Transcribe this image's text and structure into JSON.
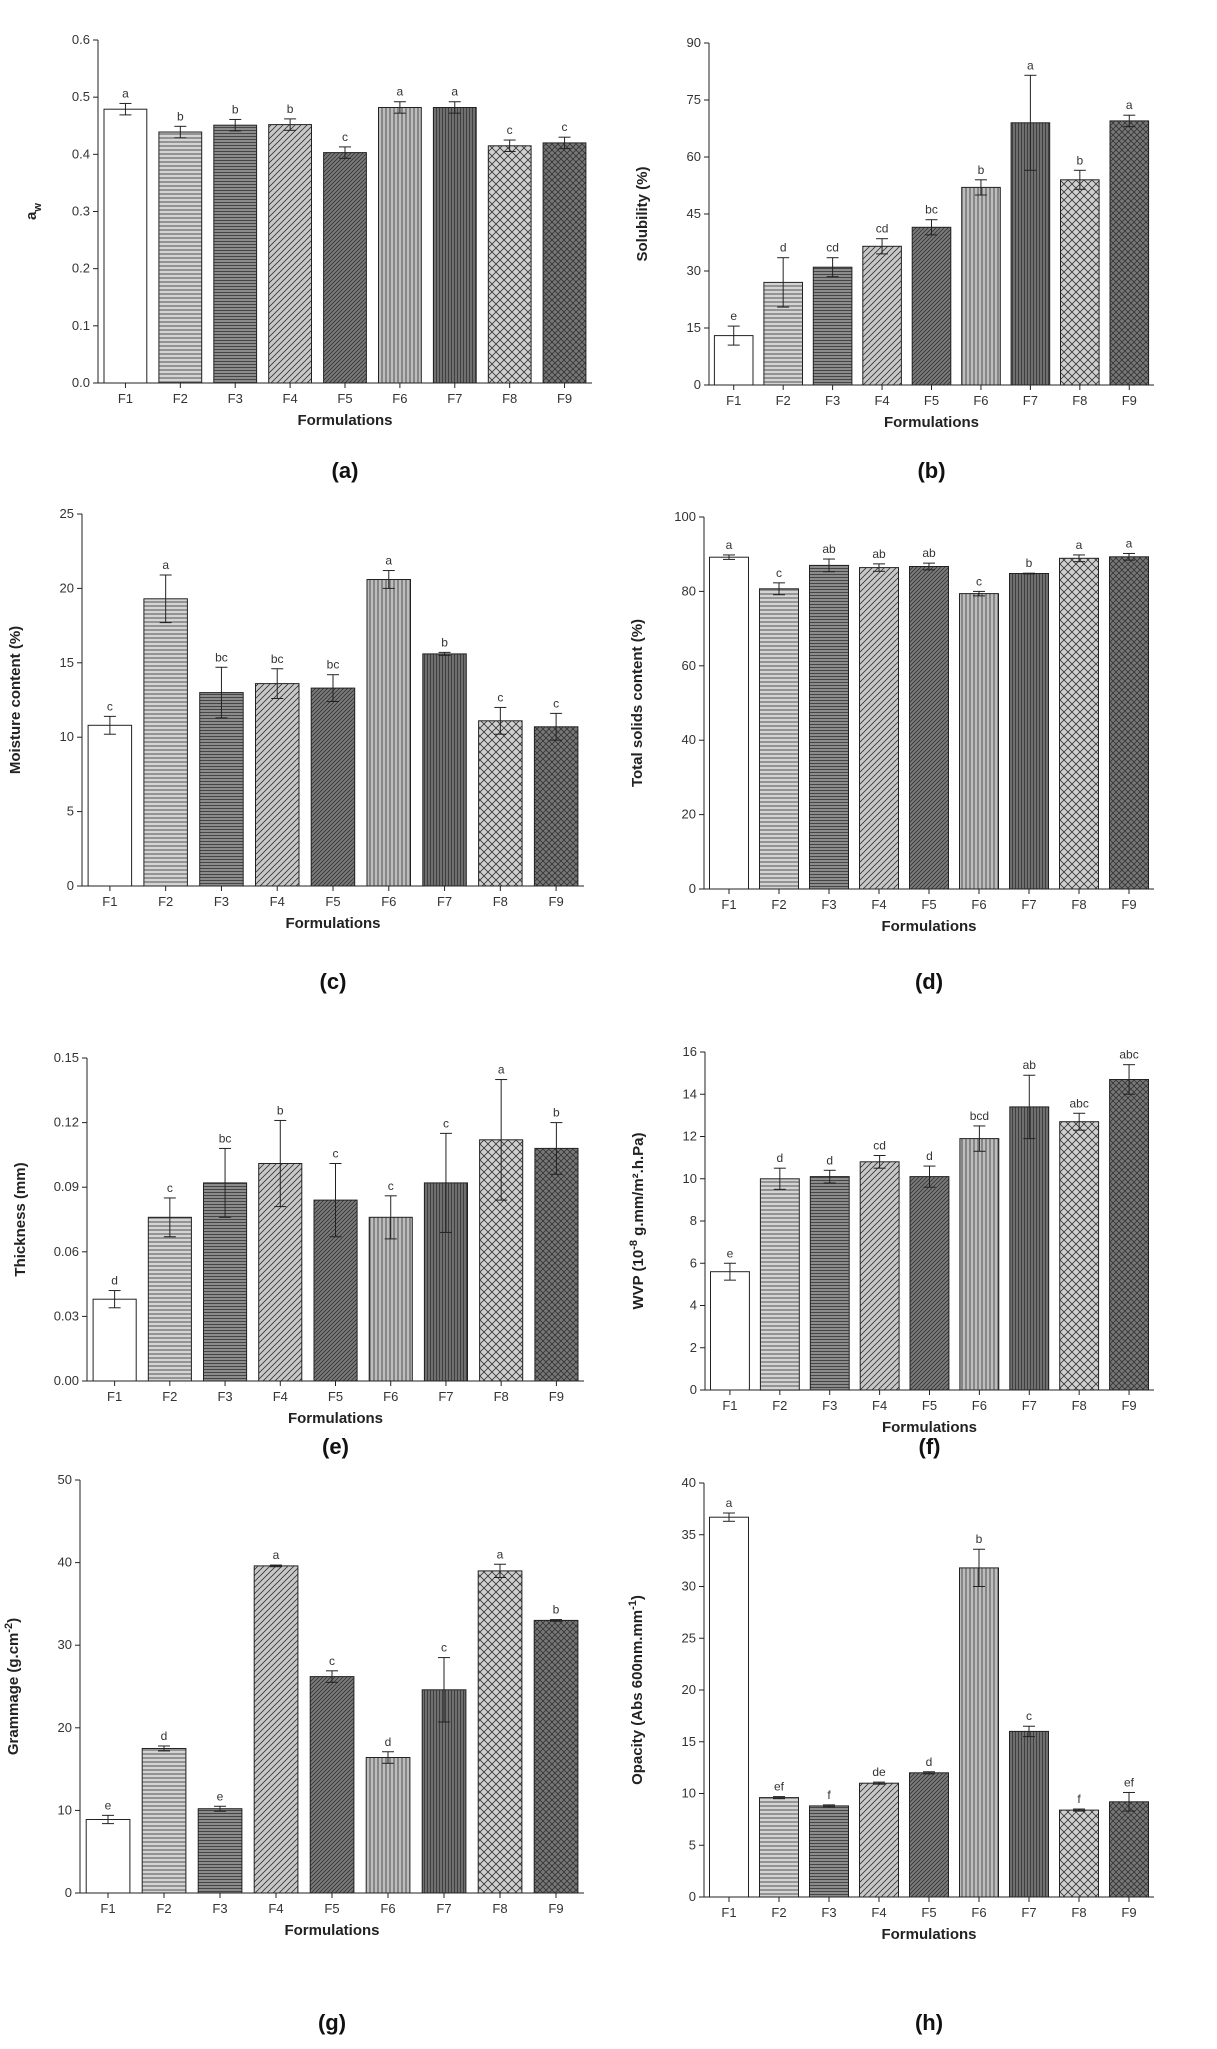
{
  "chart_data": [
    {
      "id": "a",
      "type": "bar",
      "panel_label": "(a)",
      "ylabel_main": "a",
      "ylabel_sub": "w",
      "ylabel_sup": "",
      "ylabel_after": "",
      "xlabel": "Formulations",
      "categories": [
        "F1",
        "F2",
        "F3",
        "F4",
        "F5",
        "F6",
        "F7",
        "F8",
        "F9"
      ],
      "values": [
        0.479,
        0.439,
        0.451,
        0.452,
        0.403,
        0.482,
        0.482,
        0.415,
        0.42
      ],
      "errors": [
        0.01,
        0.01,
        0.01,
        0.01,
        0.01,
        0.01,
        0.01,
        0.01,
        0.01
      ],
      "letters": [
        "a",
        "b",
        "b",
        "b",
        "c",
        "a",
        "a",
        "c",
        "c"
      ],
      "ylim": [
        0,
        0.6
      ],
      "yticks": [
        0.0,
        0.1,
        0.2,
        0.3,
        0.4,
        0.5,
        0.6
      ],
      "ytick_labels": [
        "0.0",
        "0.1",
        "0.2",
        "0.3",
        "0.4",
        "0.5",
        "0.6"
      ]
    },
    {
      "id": "b",
      "type": "bar",
      "panel_label": "(b)",
      "ylabel_main": "Solubility (%)",
      "ylabel_sub": "",
      "ylabel_sup": "",
      "ylabel_after": "",
      "xlabel": "Formulations",
      "categories": [
        "F1",
        "F2",
        "F3",
        "F4",
        "F5",
        "F6",
        "F7",
        "F8",
        "F9"
      ],
      "values": [
        13,
        27,
        31,
        36.5,
        41.5,
        52,
        69,
        54,
        69.5
      ],
      "errors": [
        2.5,
        6.5,
        2.5,
        2,
        2,
        2,
        12.5,
        2.5,
        1.5
      ],
      "letters": [
        "e",
        "d",
        "cd",
        "cd",
        "bc",
        "b",
        "a",
        "b",
        "a"
      ],
      "ylim": [
        0,
        90
      ],
      "yticks": [
        0,
        15,
        30,
        45,
        60,
        75,
        90
      ],
      "ytick_labels": [
        "0",
        "15",
        "30",
        "45",
        "60",
        "75",
        "90"
      ]
    },
    {
      "id": "c",
      "type": "bar",
      "panel_label": "(c)",
      "ylabel_main": "Moisture content (%)",
      "ylabel_sub": "",
      "ylabel_sup": "",
      "ylabel_after": "",
      "xlabel": "Formulations",
      "categories": [
        "F1",
        "F2",
        "F3",
        "F4",
        "F5",
        "F6",
        "F7",
        "F8",
        "F9"
      ],
      "values": [
        10.8,
        19.3,
        13,
        13.6,
        13.3,
        20.6,
        15.6,
        11.1,
        10.7
      ],
      "errors": [
        0.6,
        1.6,
        1.7,
        1,
        0.9,
        0.6,
        0.1,
        0.9,
        0.9
      ],
      "letters": [
        "c",
        "a",
        "bc",
        "bc",
        "bc",
        "a",
        "b",
        "c",
        "c"
      ],
      "ylim": [
        0,
        25
      ],
      "yticks": [
        0,
        5,
        10,
        15,
        20,
        25
      ],
      "ytick_labels": [
        "0",
        "5",
        "10",
        "15",
        "20",
        "25"
      ]
    },
    {
      "id": "d",
      "type": "bar",
      "panel_label": "(d)",
      "ylabel_main": "Total solids content (%)",
      "ylabel_sub": "",
      "ylabel_sup": "",
      "ylabel_after": "",
      "xlabel": "Formulations",
      "categories": [
        "F1",
        "F2",
        "F3",
        "F4",
        "F5",
        "F6",
        "F7",
        "F8",
        "F9"
      ],
      "values": [
        89.2,
        80.7,
        87,
        86.4,
        86.7,
        79.4,
        84.8,
        88.9,
        89.3
      ],
      "errors": [
        0.6,
        1.6,
        1.7,
        1,
        0.9,
        0.6,
        0.1,
        0.9,
        0.9
      ],
      "letters": [
        "a",
        "c",
        "ab",
        "ab",
        "ab",
        "c",
        "b",
        "a",
        "a"
      ],
      "ylim": [
        0,
        100
      ],
      "yticks": [
        0,
        20,
        40,
        60,
        80,
        100
      ],
      "ytick_labels": [
        "0",
        "20",
        "40",
        "60",
        "80",
        "100"
      ]
    },
    {
      "id": "e",
      "type": "bar",
      "panel_label": "(e)",
      "ylabel_main": "Thickness (mm)",
      "ylabel_sub": "",
      "ylabel_sup": "",
      "ylabel_after": "",
      "xlabel": "Formulations",
      "categories": [
        "F1",
        "F2",
        "F3",
        "F4",
        "F5",
        "F6",
        "F7",
        "F8",
        "F9"
      ],
      "values": [
        0.038,
        0.076,
        0.092,
        0.101,
        0.084,
        0.076,
        0.092,
        0.112,
        0.108
      ],
      "errors": [
        0.004,
        0.009,
        0.016,
        0.02,
        0.017,
        0.01,
        0.023,
        0.028,
        0.012
      ],
      "letters": [
        "d",
        "c",
        "bc",
        "b",
        "c",
        "c",
        "c",
        "a",
        "b"
      ],
      "ylim": [
        0,
        0.15
      ],
      "yticks": [
        0.0,
        0.03,
        0.06,
        0.09,
        0.12,
        0.15
      ],
      "ytick_labels": [
        "0.00",
        "0.03",
        "0.06",
        "0.09",
        "0.12",
        "0.15"
      ]
    },
    {
      "id": "f",
      "type": "bar",
      "panel_label": "(f)",
      "ylabel_main": "WVP (10",
      "ylabel_sub": "",
      "ylabel_sup": "-8",
      "ylabel_after": " g.mm/m².h.Pa)",
      "xlabel": "Formulations",
      "categories": [
        "F1",
        "F2",
        "F3",
        "F4",
        "F5",
        "F6",
        "F7",
        "F8",
        "F9"
      ],
      "values": [
        5.6,
        10,
        10.1,
        10.8,
        10.1,
        11.9,
        13.4,
        12.7,
        14.7
      ],
      "errors": [
        0.4,
        0.5,
        0.3,
        0.3,
        0.5,
        0.6,
        1.5,
        0.4,
        0.7
      ],
      "letters": [
        "e",
        "d",
        "d",
        "cd",
        "d",
        "bcd",
        "ab",
        "abc",
        "abc"
      ],
      "ylim": [
        0,
        16
      ],
      "yticks": [
        0,
        2,
        4,
        6,
        8,
        10,
        12,
        14,
        16
      ],
      "ytick_labels": [
        "0",
        "2",
        "4",
        "6",
        "8",
        "10",
        "12",
        "14",
        "16"
      ]
    },
    {
      "id": "g",
      "type": "bar",
      "panel_label": "(g)",
      "ylabel_main": "Grammage (g.cm",
      "ylabel_sub": "",
      "ylabel_sup": "-2",
      "ylabel_after": ")",
      "xlabel": "Formulations",
      "categories": [
        "F1",
        "F2",
        "F3",
        "F4",
        "F5",
        "F6",
        "F7",
        "F8",
        "F9"
      ],
      "values": [
        8.9,
        17.5,
        10.2,
        39.6,
        26.2,
        16.4,
        24.6,
        39,
        33
      ],
      "errors": [
        0.5,
        0.3,
        0.3,
        0.1,
        0.7,
        0.7,
        3.9,
        0.8,
        0.1
      ],
      "letters": [
        "e",
        "d",
        "e",
        "a",
        "c",
        "d",
        "c",
        "a",
        "b"
      ],
      "ylim": [
        0,
        50
      ],
      "yticks": [
        0,
        10,
        20,
        30,
        40,
        50
      ],
      "ytick_labels": [
        "0",
        "10",
        "20",
        "30",
        "40",
        "50"
      ]
    },
    {
      "id": "h",
      "type": "bar",
      "panel_label": "(h)",
      "ylabel_main": "Opacity (Abs 600nm.mm",
      "ylabel_sub": "",
      "ylabel_sup": "-1",
      "ylabel_after": ")",
      "xlabel": "Formulations",
      "categories": [
        "F1",
        "F2",
        "F3",
        "F4",
        "F5",
        "F6",
        "F7",
        "F8",
        "F9"
      ],
      "values": [
        36.7,
        9.6,
        8.8,
        11,
        12,
        31.8,
        16,
        8.4,
        9.2
      ],
      "errors": [
        0.4,
        0.1,
        0.1,
        0.1,
        0.1,
        1.8,
        0.5,
        0.1,
        0.9
      ],
      "letters": [
        "a",
        "ef",
        "f",
        "de",
        "d",
        "b",
        "c",
        "f",
        "ef"
      ],
      "ylim": [
        0,
        40
      ],
      "yticks": [
        0,
        5,
        10,
        15,
        20,
        25,
        30,
        35,
        40
      ],
      "ytick_labels": [
        "0",
        "5",
        "10",
        "15",
        "20",
        "25",
        "30",
        "35",
        "40"
      ]
    }
  ],
  "style": {
    "bar_fills": [
      "#ffffff",
      "#d4d4d4",
      "#8c8c8c",
      "#c8c8c8",
      "#7a7a7a",
      "#bdbdbd",
      "#6f6f6f",
      "#d0d0d0",
      "#777777"
    ],
    "bar_patterns": [
      "none",
      "horizontal",
      "horizontal-dense",
      "diagonal-up",
      "diagonal-up-dense",
      "vertical",
      "vertical-dense",
      "crosshatch",
      "crosshatch-dense"
    ],
    "line_color": "#222222"
  }
}
